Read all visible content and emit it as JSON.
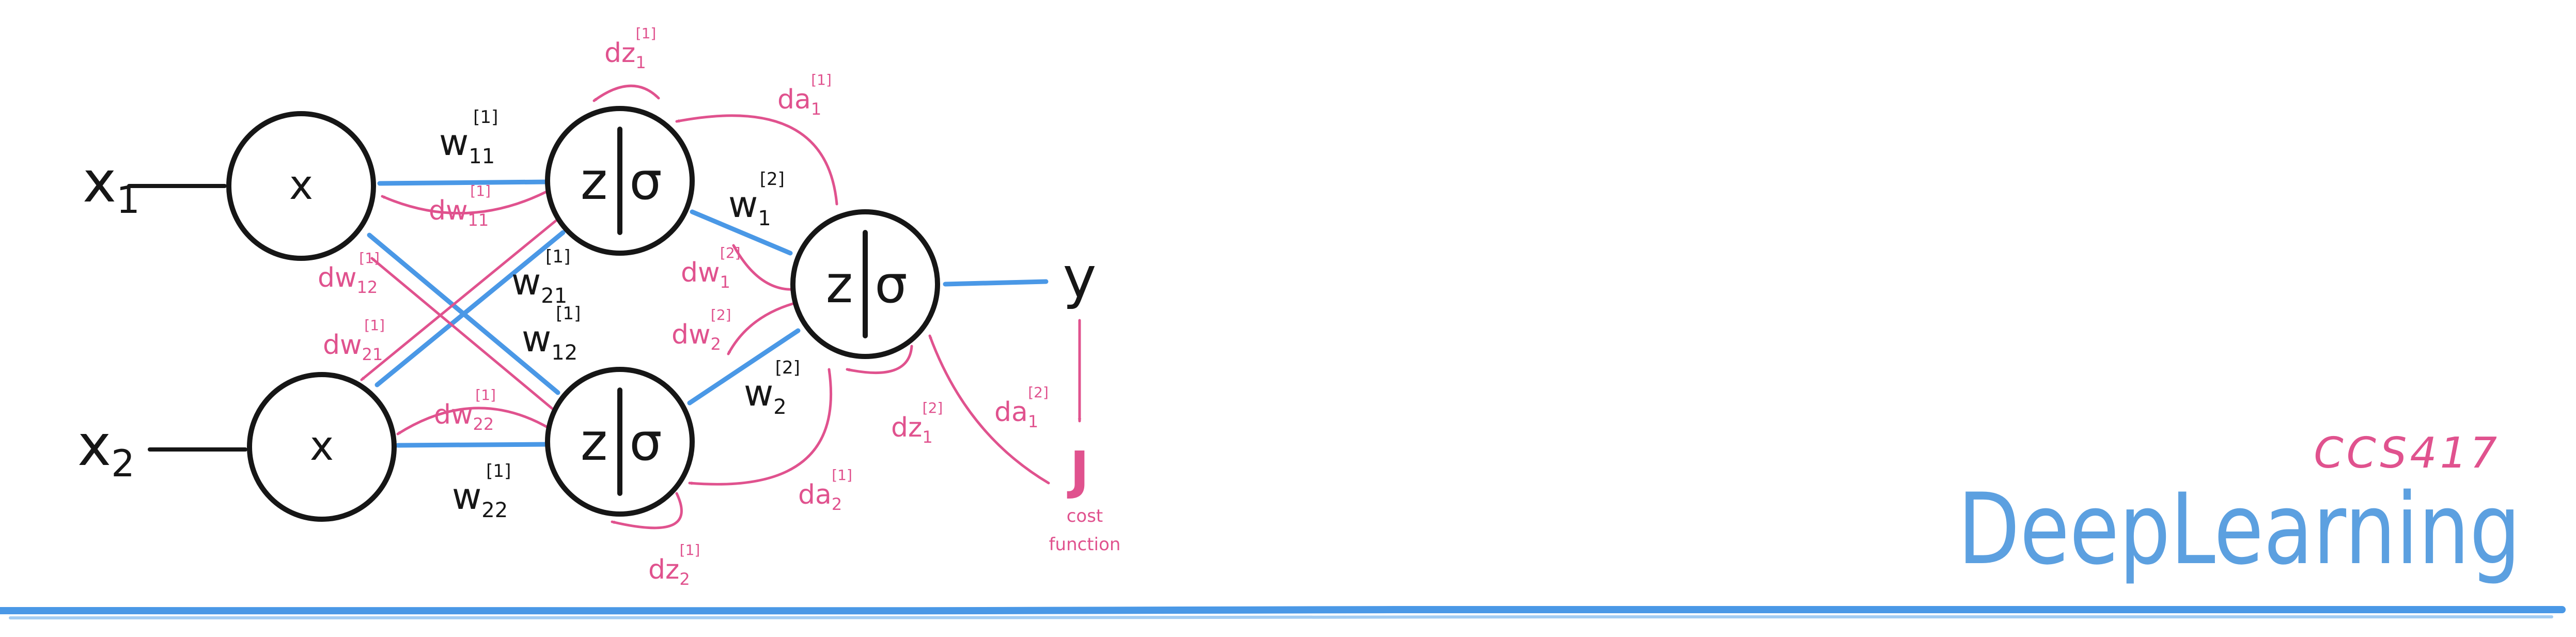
{
  "colors": {
    "ink": "#161616",
    "forward": "#4a98e6",
    "backward": "#e0528e",
    "brand_blue": "#5ca0e0",
    "brand_pink": "#e0528e"
  },
  "inputs": [
    {
      "symbol": "x",
      "index": "1"
    },
    {
      "symbol": "x",
      "index": "2"
    }
  ],
  "input_nodes": [
    {
      "label": "x"
    },
    {
      "label": "x"
    }
  ],
  "hidden_nodes": [
    {
      "z": "z",
      "sigma": "σ"
    },
    {
      "z": "z",
      "sigma": "σ"
    }
  ],
  "output_node": {
    "z": "z",
    "sigma": "σ"
  },
  "output": {
    "label": "y"
  },
  "cost": {
    "symbol": "J",
    "caption_line1": "cost",
    "caption_line2": "function"
  },
  "weights": {
    "w11": {
      "base": "w",
      "sub": "11",
      "sup": "[1]"
    },
    "w21": {
      "base": "w",
      "sub": "21",
      "sup": "[1]"
    },
    "w12": {
      "base": "w",
      "sub": "12",
      "sup": "[1]"
    },
    "w22": {
      "base": "w",
      "sub": "22",
      "sup": "[1]"
    },
    "w1_2": {
      "base": "w",
      "sub": "1",
      "sup": "[2]"
    },
    "w2_2": {
      "base": "w",
      "sub": "2",
      "sup": "[2]"
    }
  },
  "gradients": {
    "dz1_1": {
      "base": "dz",
      "sub": "1",
      "sup": "[1]"
    },
    "da1_1": {
      "base": "da",
      "sub": "1",
      "sup": "[1]"
    },
    "dw11": {
      "base": "dw",
      "sub": "11",
      "sup": "[1]"
    },
    "dw12": {
      "base": "dw",
      "sub": "12",
      "sup": "[1]"
    },
    "dw21": {
      "base": "dw",
      "sub": "21",
      "sup": "[1]"
    },
    "dw22": {
      "base": "dw",
      "sub": "22",
      "sup": "[1]"
    },
    "dw1_2": {
      "base": "dw",
      "sub": "1",
      "sup": "[2]"
    },
    "dw2_2": {
      "base": "dw",
      "sub": "2",
      "sup": "[2]"
    },
    "dz1_2": {
      "base": "dz",
      "sub": "1",
      "sup": "[2]"
    },
    "da1_2": {
      "base": "da",
      "sub": "1",
      "sup": "[2]"
    },
    "da2_1": {
      "base": "da",
      "sub": "2",
      "sup": "[1]"
    },
    "dz2_1": {
      "base": "dz",
      "sub": "2",
      "sup": "[1]"
    }
  },
  "branding": {
    "course_code": "CCS417",
    "course_title": "DeepLearning"
  }
}
